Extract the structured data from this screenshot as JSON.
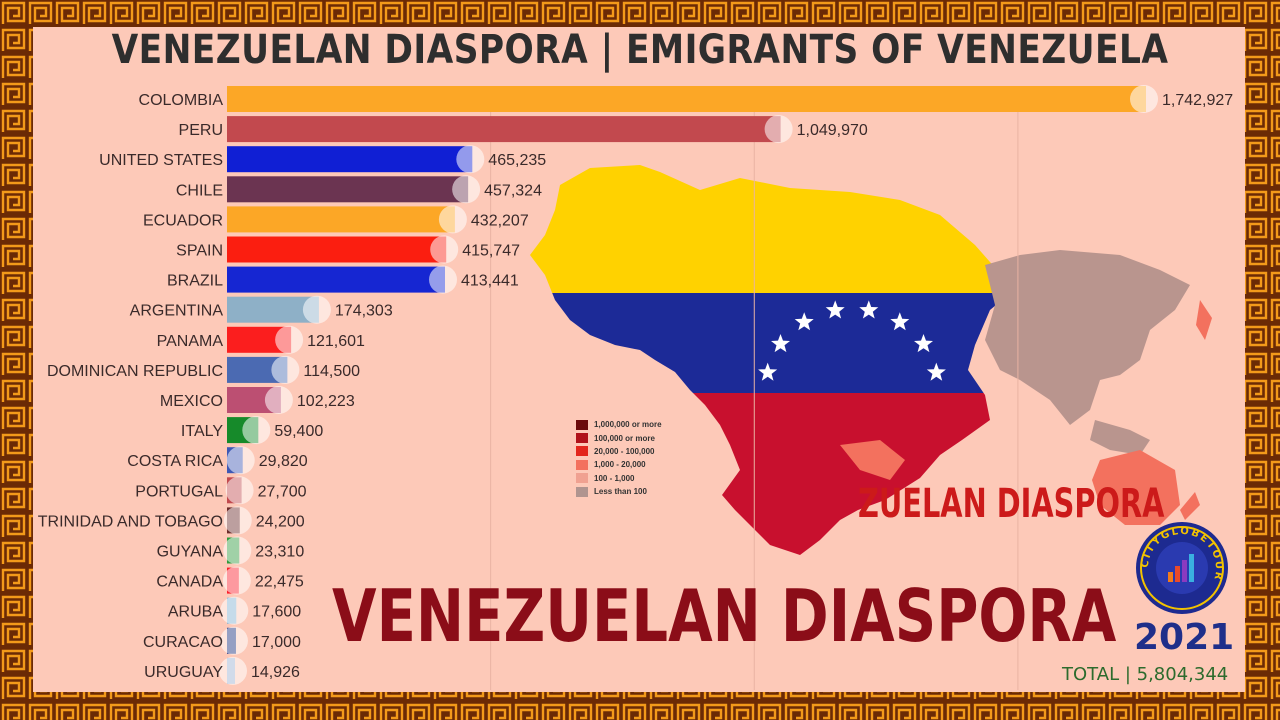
{
  "header": {
    "title": "VENEZUELAN DIASPORA | EMIGRANTS OF VENEZUELA"
  },
  "overlay": {
    "big_title": "VENEZUELAN DIASPORA",
    "map_title": "ZUELAN DIASPORA",
    "year": "2021",
    "total": "TOTAL | 5,804,344",
    "logo_text": "CITYGLOBETOUR"
  },
  "map_legend": [
    {
      "label": "1,000,000 or more",
      "color": "#6b0a0a"
    },
    {
      "label": "100,000 or more",
      "color": "#b0121a"
    },
    {
      "label": "20,000 - 100,000",
      "color": "#e3261c"
    },
    {
      "label": "1,000 - 20,000",
      "color": "#f3715e"
    },
    {
      "label": "100 - 1,000",
      "color": "#f0a191"
    },
    {
      "label": "Less than 100",
      "color": "#b0948f"
    }
  ],
  "colors": {
    "background": "#fdc9b8",
    "frame": "#6b2a05",
    "frame_pattern": "#f39a1a",
    "flag_yellow": "#ffd200",
    "flag_blue": "#1c2a97",
    "flag_red": "#c8102e"
  },
  "chart_data": {
    "type": "bar",
    "orientation": "horizontal",
    "title": "VENEZUELAN DIASPORA | EMIGRANTS OF VENEZUELA",
    "xlim": [
      0,
      1800000
    ],
    "grid": true,
    "categories": [
      "COLOMBIA",
      "PERU",
      "UNITED STATES",
      "CHILE",
      "ECUADOR",
      "SPAIN",
      "BRAZIL",
      "ARGENTINA",
      "PANAMA",
      "DOMINICAN REPUBLIC",
      "MEXICO",
      "ITALY",
      "COSTA RICA",
      "PORTUGAL",
      "TRINIDAD AND TOBAGO",
      "GUYANA",
      "CANADA",
      "ARUBA",
      "CURACAO",
      "URUGUAY"
    ],
    "values": [
      1742927,
      1049970,
      465235,
      457324,
      432207,
      415747,
      413441,
      174303,
      121601,
      114500,
      102223,
      59400,
      29820,
      27700,
      24200,
      23310,
      22475,
      17600,
      17000,
      14926
    ],
    "value_labels": [
      "1,742,927",
      "1,049,970",
      "465,235",
      "457,324",
      "432,207",
      "415,747",
      "413,441",
      "174,303",
      "121,601",
      "114,500",
      "102,223",
      "59,400",
      "29,820",
      "27,700",
      "24,200",
      "23,310",
      "22,475",
      "17,600",
      "17,000",
      "14,926"
    ],
    "bar_colors": [
      "#fca726",
      "#c2494e",
      "#101fd4",
      "#6b3451",
      "#fca726",
      "#fb1e10",
      "#1626d2",
      "#8eb0c7",
      "#fb1e1e",
      "#4b6ab2",
      "#bc4f72",
      "#168a2a",
      "#3e58b4",
      "#c2494e",
      "#6b2a2a",
      "#2d9a3c",
      "#fb1e2a",
      "#7eb0d0",
      "#152a7a",
      "#9ab0d0"
    ]
  }
}
